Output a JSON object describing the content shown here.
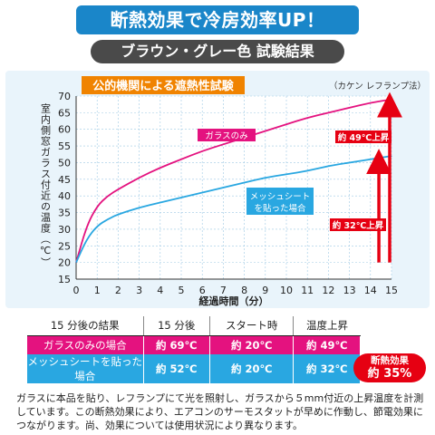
{
  "header": {
    "banner": "断熱効果で冷房効率UP！",
    "subtitle": "ブラウン・グレー色 試験結果"
  },
  "chart_data": {
    "type": "line",
    "title": "公的機関による遮熱性試験",
    "source": "（カケン レフランプ法）",
    "xlabel": "経過時間（分）",
    "ylabel": "室内側窓ガラス付近の温度（℃）",
    "xlim": [
      0,
      15
    ],
    "ylim": [
      15,
      70
    ],
    "x_ticks": [
      "0",
      "1",
      "2",
      "3",
      "4",
      "5",
      "6",
      "7",
      "8",
      "9",
      "10",
      "11",
      "12",
      "13",
      "14",
      "15"
    ],
    "y_ticks": [
      "15",
      "20",
      "25",
      "30",
      "35",
      "40",
      "45",
      "50",
      "55",
      "60",
      "65",
      "70"
    ],
    "grid": true,
    "series": [
      {
        "name": "ガラスのみ",
        "color": "#e4127f",
        "x": [
          0,
          0.5,
          1,
          1.5,
          2,
          3,
          4,
          5,
          6,
          7,
          8,
          9,
          10,
          11,
          12,
          13,
          14,
          15
        ],
        "y": [
          20,
          31,
          37,
          40,
          42,
          45.5,
          48.5,
          51,
          53.5,
          55.5,
          57.5,
          59.5,
          61.5,
          63.5,
          65,
          66.5,
          68,
          69
        ]
      },
      {
        "name": "メッシュシートを貼った場合",
        "color": "#29a7e1",
        "x": [
          0,
          0.5,
          1,
          1.5,
          2,
          3,
          4,
          5,
          6,
          7,
          8,
          9,
          10,
          11,
          12,
          13,
          14,
          15
        ],
        "y": [
          20,
          27,
          31,
          33,
          34.5,
          36.5,
          38,
          39.5,
          41,
          42.5,
          44,
          45.5,
          46.5,
          47.5,
          49,
          50,
          51,
          52
        ]
      }
    ],
    "series_labels": [
      "ガラスのみ",
      "メッシュシート",
      "を貼った場合"
    ],
    "annotations": [
      {
        "text": "約 49℃上昇",
        "from": 20,
        "to": 69
      },
      {
        "text": "約 32℃上昇",
        "from": 20,
        "to": 52
      }
    ]
  },
  "results_table": {
    "headers": [
      "15 分後の結果",
      "15 分後",
      "スタート時",
      "温度上昇"
    ],
    "rows": [
      [
        "ガラスのみの場合",
        "約 69℃",
        "約 20℃",
        "約 49℃"
      ],
      [
        "メッシュシートを貼った場合",
        "約 52℃",
        "約 20℃",
        "約 32℃"
      ]
    ]
  },
  "badge": {
    "line1": "断熱効果",
    "line2": "約 35%"
  },
  "footnote": "ガラスに本品を貼り、レフランプにて光を照射し、ガラスから５mm付近の上昇温度を計測しています。この断熱効果により、エアコンのサーモスタットが早めに作動し、節電効果につながります。尚、効果については使用状況により異なります。",
  "colors": {
    "accent_blue": "#1a86c9",
    "magenta": "#e4127f",
    "cyan": "#29a7e1",
    "red": "#e60012",
    "orange": "#f08300"
  }
}
